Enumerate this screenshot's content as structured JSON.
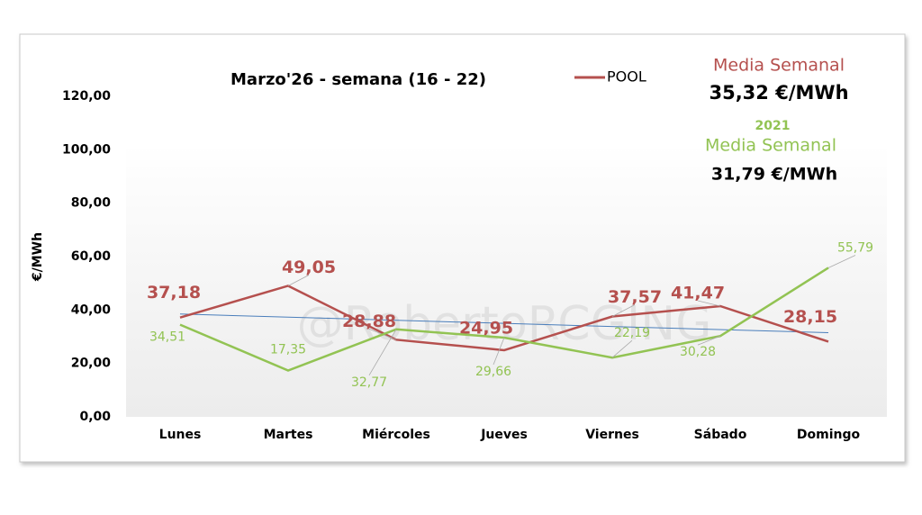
{
  "chart_data": {
    "type": "line",
    "title": "Marzo'26 - semana (16 - 22)",
    "y_label": "€/MWh",
    "categories": [
      "Lunes",
      "Martes",
      "Miércoles",
      "Jueves",
      "Viernes",
      "Sábado",
      "Domingo"
    ],
    "series": [
      {
        "name": "POOL",
        "color": "#b5504e",
        "values": [
          37.18,
          49.05,
          28.88,
          24.95,
          37.57,
          41.47,
          28.15
        ],
        "value_labels": [
          "37,18",
          "49,05",
          "28,88",
          "24,95",
          "37,57",
          "41,47",
          "28,15"
        ]
      },
      {
        "name": "2021",
        "color": "#92c353",
        "values": [
          34.51,
          17.35,
          32.77,
          29.66,
          22.19,
          30.28,
          55.79
        ],
        "value_labels": [
          "34,51",
          "17,35",
          "32,77",
          "29,66",
          "22,19",
          "30,28",
          "55,79"
        ]
      }
    ],
    "trendline": {
      "color": "#4a7ebb",
      "start": 38.5,
      "end": 31.5
    },
    "ylim": [
      0,
      120
    ],
    "yticks": [
      {
        "value": 0,
        "label": "0,00"
      },
      {
        "value": 20,
        "label": "20,00"
      },
      {
        "value": 40,
        "label": "40,00"
      },
      {
        "value": 60,
        "label": "60,00"
      },
      {
        "value": 80,
        "label": "80,00"
      },
      {
        "value": 100,
        "label": "100,00"
      },
      {
        "value": 120,
        "label": "120,00"
      }
    ],
    "legend": [
      "POOL"
    ],
    "summary": {
      "pool_label": "Media Semanal",
      "pool_value": "35,32 €/MWh",
      "ref_label": "Media Semanal",
      "ref_value": "31,79 €/MWh"
    },
    "watermark": "@RobertoRCGING"
  }
}
